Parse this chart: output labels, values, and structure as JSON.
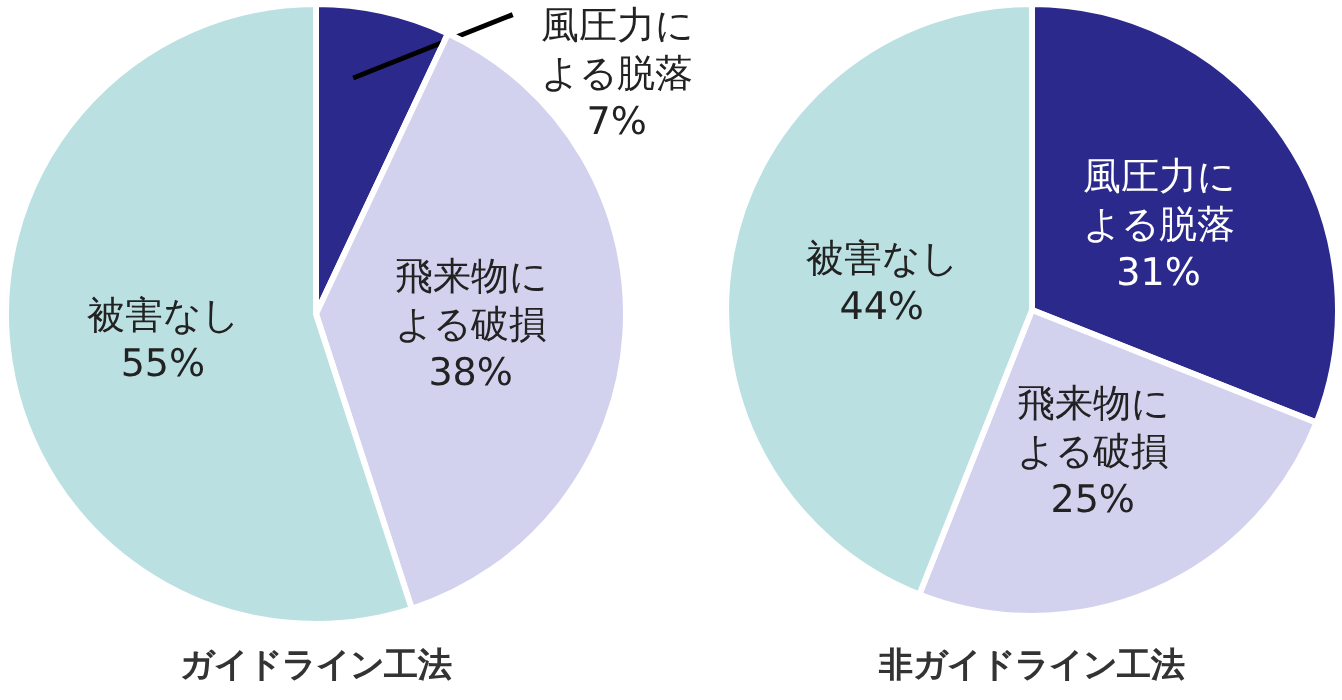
{
  "chart_data": [
    {
      "type": "pie",
      "title": "ガイドライン工法",
      "categories": [
        "風圧力による脱落",
        "飛来物による破損",
        "被害なし"
      ],
      "values": [
        7,
        38,
        55
      ],
      "value_labels": [
        "7%",
        "38%",
        "55%"
      ],
      "colors": [
        "#2b2a8c",
        "#d2d2ef",
        "#bbe0e2"
      ]
    },
    {
      "type": "pie",
      "title": "非ガイドライン工法",
      "categories": [
        "風圧力による脱落",
        "飛来物による破損",
        "被害なし"
      ],
      "values": [
        31,
        25,
        44
      ],
      "value_labels": [
        "31%",
        "25%",
        "44%"
      ],
      "colors": [
        "#2b2a8c",
        "#d2d2ef",
        "#bbe0e2"
      ]
    }
  ]
}
